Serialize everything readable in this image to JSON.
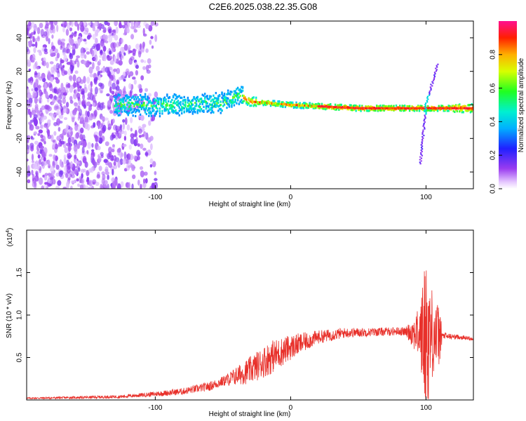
{
  "title": "C2E6.2025.038.22.35.G08",
  "colors": {
    "snr_line": "#e8302a",
    "axis": "#000000",
    "spectrogram_low": "#8a2be2",
    "spectrogram_mid": "#00e0e0",
    "spectrogram_high": "#ff0000"
  },
  "chart_data": [
    {
      "type": "heatmap",
      "title": "",
      "xlabel": "Height of straight line (km)",
      "ylabel": "Frequency (Hz)",
      "xlim": [
        -195,
        135
      ],
      "ylim": [
        -50,
        50
      ],
      "x_ticks": [
        -100,
        0,
        100
      ],
      "x_tick_labels": [
        "-100",
        "0",
        "100"
      ],
      "y_ticks": [
        -40,
        -20,
        0,
        20,
        40
      ],
      "y_tick_labels": [
        "-40",
        "-20",
        "0",
        "20",
        "40"
      ],
      "grid": false,
      "colorbar": {
        "label": "Normalized spectral amplitude",
        "range": [
          0.0,
          1.0
        ],
        "ticks": [
          0.0,
          0.2,
          0.4,
          0.6,
          0.8
        ],
        "tick_labels": [
          "0.0",
          "0.2",
          "0.4",
          "0.6",
          "0.8"
        ],
        "colormap": "rainbow (violet-blue-cyan-green-yellow-red-magenta)"
      },
      "features": {
        "noise_region_x": [
          -195,
          -105
        ],
        "signal_start_x": -130,
        "main_line_freq_hz": [
          [
            -130,
            0
          ],
          [
            -80,
            0
          ],
          [
            -50,
            1
          ],
          [
            -38,
            6
          ],
          [
            -30,
            2
          ],
          [
            0,
            0
          ],
          [
            50,
            -2
          ],
          [
            100,
            -2
          ],
          [
            135,
            -2
          ]
        ],
        "spike_x": 100,
        "spike_freq_range_hz": [
          -35,
          25
        ]
      }
    },
    {
      "type": "line",
      "title": "",
      "xlabel": "Height of straight line (km)",
      "ylabel": "SNR (10 * v/v)",
      "y_multiplier_label": "(x10",
      "y_multiplier_exp": "4",
      "xlim": [
        -195,
        135
      ],
      "ylim": [
        0,
        2.0
      ],
      "x_ticks": [
        -100,
        0,
        100
      ],
      "x_tick_labels": [
        "-100",
        "0",
        "100"
      ],
      "y_ticks": [
        0.5,
        1.0,
        1.5
      ],
      "y_tick_labels": [
        "0.5",
        "1.0",
        "1.5"
      ],
      "grid": false,
      "series": [
        {
          "trend": {
            "x": [
              -195,
              -150,
              -125,
              -100,
              -80,
              -60,
              -45,
              -30,
              -15,
              0,
              20,
              40,
              60,
              80,
              90,
              95,
              100,
              105,
              110,
              115,
              125,
              135
            ],
            "y": [
              0.02,
              0.03,
              0.04,
              0.07,
              0.1,
              0.16,
              0.25,
              0.35,
              0.5,
              0.62,
              0.74,
              0.79,
              0.8,
              0.81,
              0.8,
              0.78,
              0.75,
              0.78,
              0.76,
              0.75,
              0.74,
              0.72
            ]
          },
          "noise_amplitude": {
            "x": [
              -195,
              -120,
              -80,
              -50,
              -30,
              -15,
              0,
              20,
              40,
              60,
              85,
              95,
              100,
              105,
              110,
              112,
              120,
              135
            ],
            "a": [
              0.01,
              0.02,
              0.04,
              0.06,
              0.16,
              0.2,
              0.15,
              0.08,
              0.06,
              0.05,
              0.05,
              0.3,
              1.0,
              0.5,
              0.35,
              0.05,
              0.03,
              0.02
            ]
          }
        }
      ]
    }
  ]
}
